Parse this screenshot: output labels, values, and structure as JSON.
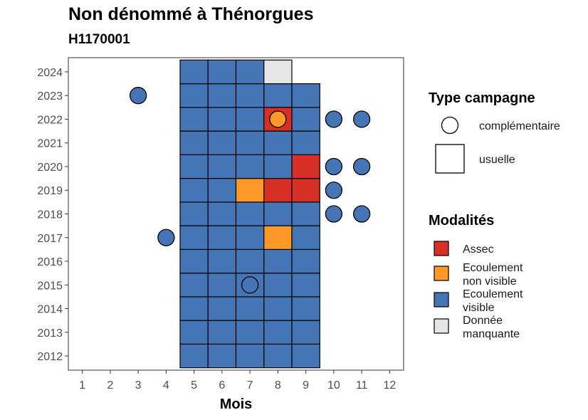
{
  "title": "Non dénommé à Thénorgues",
  "subtitle": "H1170001",
  "chart_data": {
    "type": "heatmap",
    "xlabel": "Mois",
    "ylabel": "",
    "x_ticks": [
      1,
      2,
      3,
      4,
      5,
      6,
      7,
      8,
      9,
      10,
      11,
      12
    ],
    "y_ticks": [
      2012,
      2013,
      2014,
      2015,
      2016,
      2017,
      2018,
      2019,
      2020,
      2021,
      2022,
      2023,
      2024
    ],
    "xlim": [
      0.5,
      12.5
    ],
    "ylim": [
      2011.4,
      2024.6
    ],
    "colors": {
      "Assec": "#d73027",
      "Ecoulement non visible": "#fe9929",
      "Ecoulement visible": "#4575b4",
      "Donnée manquante": "#e5e5e5"
    },
    "usuelle": [
      {
        "year": 2012,
        "months": {
          "5": "Ecoulement visible",
          "6": "Ecoulement visible",
          "7": "Ecoulement visible",
          "8": "Ecoulement visible",
          "9": "Ecoulement visible"
        }
      },
      {
        "year": 2013,
        "months": {
          "5": "Ecoulement visible",
          "6": "Ecoulement visible",
          "7": "Ecoulement visible",
          "8": "Ecoulement visible",
          "9": "Ecoulement visible"
        }
      },
      {
        "year": 2014,
        "months": {
          "5": "Ecoulement visible",
          "6": "Ecoulement visible",
          "7": "Ecoulement visible",
          "8": "Ecoulement visible",
          "9": "Ecoulement visible"
        }
      },
      {
        "year": 2015,
        "months": {
          "5": "Ecoulement visible",
          "6": "Ecoulement visible",
          "7": "Ecoulement visible",
          "8": "Ecoulement visible",
          "9": "Ecoulement visible"
        }
      },
      {
        "year": 2016,
        "months": {
          "5": "Ecoulement visible",
          "6": "Ecoulement visible",
          "7": "Ecoulement visible",
          "8": "Ecoulement visible",
          "9": "Ecoulement visible"
        }
      },
      {
        "year": 2017,
        "months": {
          "5": "Ecoulement visible",
          "6": "Ecoulement visible",
          "7": "Ecoulement visible",
          "8": "Ecoulement non visible",
          "9": "Ecoulement visible"
        }
      },
      {
        "year": 2018,
        "months": {
          "5": "Ecoulement visible",
          "6": "Ecoulement visible",
          "7": "Ecoulement visible",
          "8": "Ecoulement visible",
          "9": "Ecoulement visible"
        }
      },
      {
        "year": 2019,
        "months": {
          "5": "Ecoulement visible",
          "6": "Ecoulement visible",
          "7": "Ecoulement non visible",
          "8": "Assec",
          "9": "Assec"
        }
      },
      {
        "year": 2020,
        "months": {
          "5": "Ecoulement visible",
          "6": "Ecoulement visible",
          "7": "Ecoulement visible",
          "8": "Ecoulement visible",
          "9": "Assec"
        }
      },
      {
        "year": 2021,
        "months": {
          "5": "Ecoulement visible",
          "6": "Ecoulement visible",
          "7": "Ecoulement visible",
          "8": "Ecoulement visible",
          "9": "Ecoulement visible"
        }
      },
      {
        "year": 2022,
        "months": {
          "5": "Ecoulement visible",
          "6": "Ecoulement visible",
          "7": "Ecoulement visible",
          "8": "Assec",
          "9": "Ecoulement visible"
        }
      },
      {
        "year": 2023,
        "months": {
          "5": "Ecoulement visible",
          "6": "Ecoulement visible",
          "7": "Ecoulement visible",
          "8": "Ecoulement visible",
          "9": "Ecoulement visible"
        }
      },
      {
        "year": 2024,
        "months": {
          "5": "Ecoulement visible",
          "6": "Ecoulement visible",
          "7": "Ecoulement visible",
          "8": "Donnée manquante"
        }
      }
    ],
    "complementaire": [
      {
        "year": 2023,
        "month": 3,
        "modalite": "Ecoulement visible"
      },
      {
        "year": 2022,
        "month": 8,
        "modalite": "Ecoulement non visible"
      },
      {
        "year": 2022,
        "month": 10,
        "modalite": "Ecoulement visible"
      },
      {
        "year": 2022,
        "month": 11,
        "modalite": "Ecoulement visible"
      },
      {
        "year": 2020,
        "month": 10,
        "modalite": "Ecoulement visible"
      },
      {
        "year": 2020,
        "month": 11,
        "modalite": "Ecoulement visible"
      },
      {
        "year": 2019,
        "month": 10,
        "modalite": "Ecoulement visible"
      },
      {
        "year": 2018,
        "month": 10,
        "modalite": "Ecoulement visible"
      },
      {
        "year": 2018,
        "month": 11,
        "modalite": "Ecoulement visible"
      },
      {
        "year": 2017,
        "month": 4,
        "modalite": "Ecoulement visible"
      },
      {
        "year": 2015,
        "month": 7,
        "modalite": "Ecoulement visible"
      }
    ],
    "legend_type": {
      "title": "Type campagne",
      "items": [
        "complémentaire",
        "usuelle"
      ]
    },
    "legend_modalites": {
      "title": "Modalités",
      "items": [
        {
          "lines": [
            "Assec"
          ],
          "color": "#d73027"
        },
        {
          "lines": [
            "Ecoulement",
            "non visible"
          ],
          "color": "#fe9929"
        },
        {
          "lines": [
            "Ecoulement",
            "visible"
          ],
          "color": "#4575b4"
        },
        {
          "lines": [
            "Donnée",
            "manquante"
          ],
          "color": "#e5e5e5"
        }
      ]
    }
  }
}
